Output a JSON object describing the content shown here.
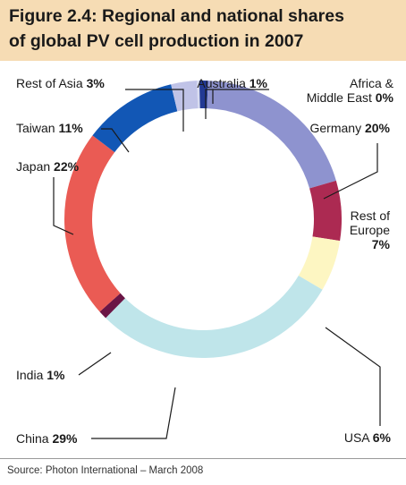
{
  "title": "Figure 2.4: Regional and national shares\nof global PV cell production in 2007",
  "source": "Source: Photon International – March 2008",
  "colors": {
    "title_background": "#f6dcb4",
    "Africa & Middle East": "#d8dcf0",
    "Australia": "#233a94",
    "Germany": "#8e93cf",
    "Rest of Europe": "#ac2a52",
    "USA": "#fdf6c2",
    "China": "#bfe5ea",
    "India": "#6a1545",
    "Japan": "#ea5b54",
    "Taiwan": "#1257b5",
    "Rest of Asia": "#c0c3e7"
  },
  "chart_data": {
    "type": "pie",
    "donut": true,
    "title": "Figure 2.4: Regional and national shares of global PV cell production in 2007",
    "unit": "%",
    "slices": [
      {
        "name": "Africa & Middle East",
        "value": 0.3,
        "label": "Africa &\nMiddle East",
        "pct_label": "0%"
      },
      {
        "name": "Australia",
        "value": 1,
        "label": "Australia",
        "pct_label": "1%"
      },
      {
        "name": "Germany",
        "value": 20,
        "label": "Germany",
        "pct_label": "20%"
      },
      {
        "name": "Rest of Europe",
        "value": 7,
        "label": "Rest of\nEurope",
        "pct_label": "7%"
      },
      {
        "name": "USA",
        "value": 6,
        "label": "USA",
        "pct_label": "6%"
      },
      {
        "name": "China",
        "value": 29,
        "label": "China",
        "pct_label": "29%"
      },
      {
        "name": "India",
        "value": 1,
        "label": "India",
        "pct_label": "1%"
      },
      {
        "name": "Japan",
        "value": 22,
        "label": "Japan",
        "pct_label": "22%"
      },
      {
        "name": "Taiwan",
        "value": 11,
        "label": "Taiwan",
        "pct_label": "11%"
      },
      {
        "name": "Rest of Asia",
        "value": 3,
        "label": "Rest of Asia",
        "pct_label": "3%"
      }
    ]
  }
}
